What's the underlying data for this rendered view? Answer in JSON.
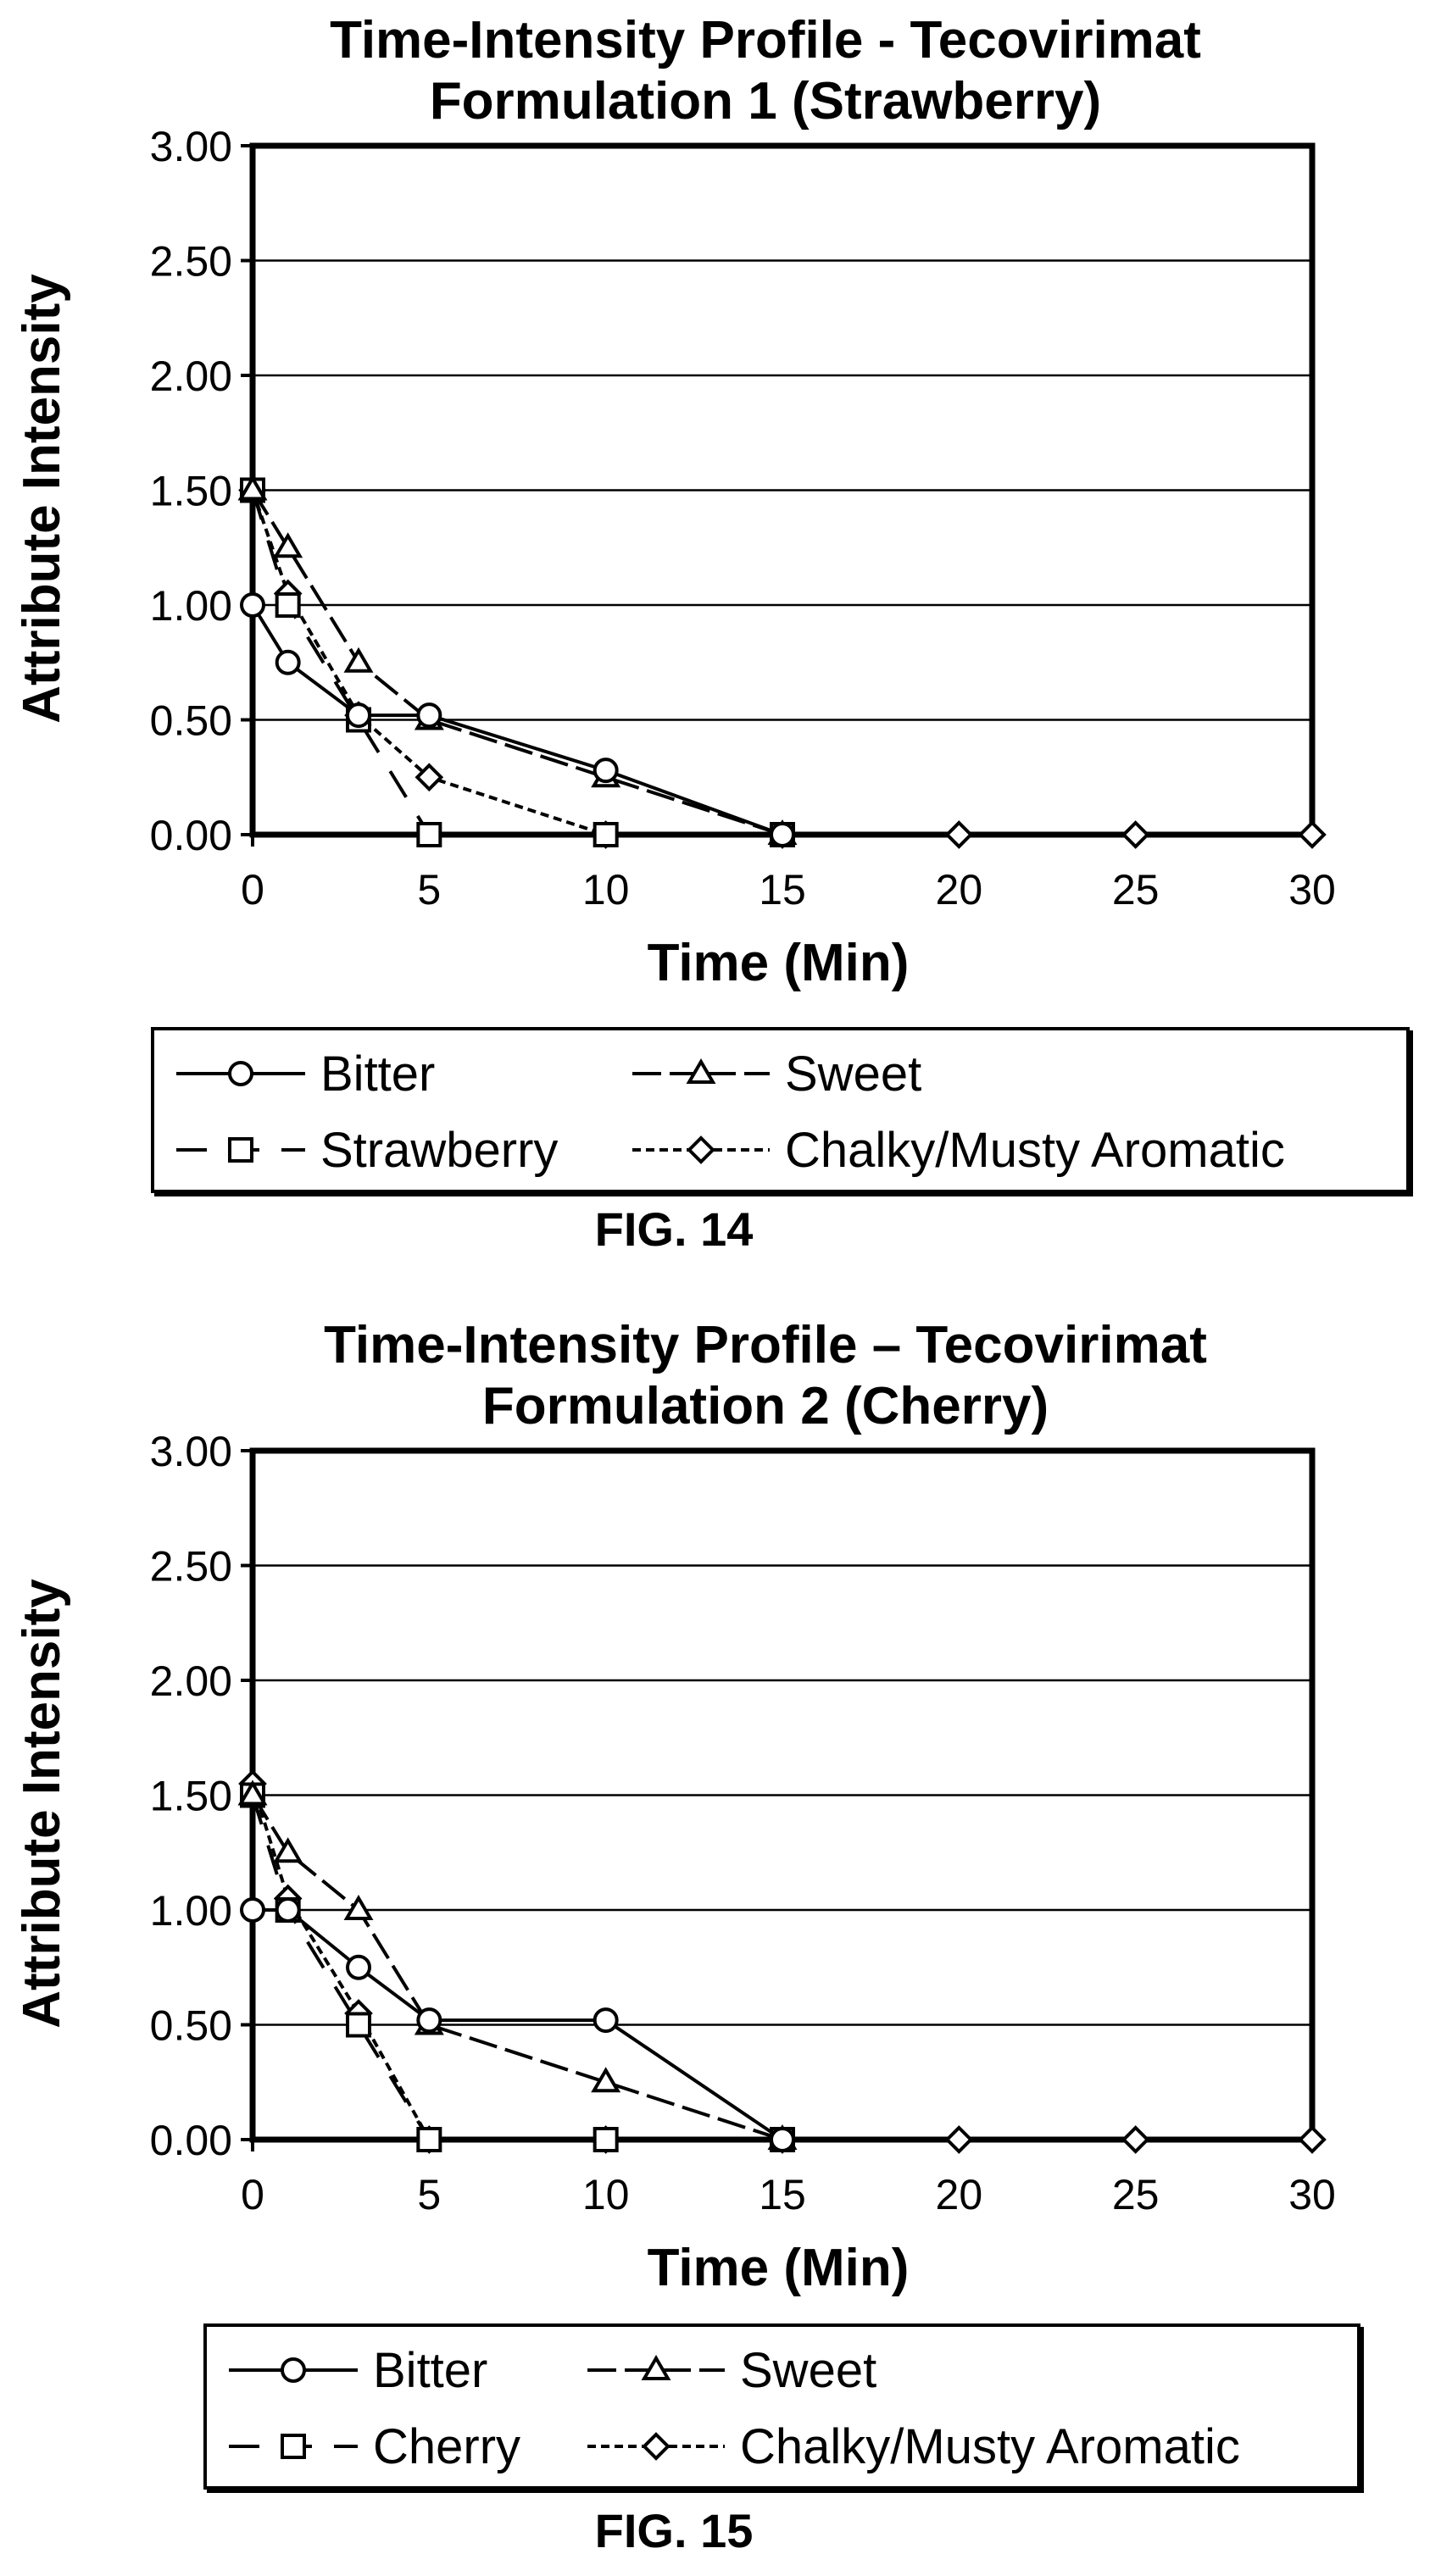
{
  "chart_data": [
    {
      "type": "line",
      "title": "Time-Intensity Profile - Tecovirimat Formulation 1 (Strawberry)",
      "title_lines": [
        "Time-Intensity Profile - Tecovirimat",
        "Formulation 1 (Strawberry)"
      ],
      "xlabel": "Time (Min)",
      "ylabel": "Attribute Intensity",
      "xlim": [
        0,
        30
      ],
      "ylim": [
        0,
        3
      ],
      "xticks": [
        "0",
        "5",
        "10",
        "15",
        "20",
        "25",
        "30"
      ],
      "xtick_values": [
        0,
        5,
        10,
        15,
        20,
        25,
        30
      ],
      "yticks": [
        "0.00",
        "0.50",
        "1.00",
        "1.50",
        "2.00",
        "2.50",
        "3.00"
      ],
      "ytick_values": [
        0,
        0.5,
        1,
        1.5,
        2,
        2.5,
        3
      ],
      "grid": "horizontal",
      "legend_position": "bottom",
      "series": [
        {
          "name": "Bitter",
          "marker": "circle",
          "line": "solid",
          "x": [
            0,
            1,
            3,
            5,
            10,
            15
          ],
          "y": [
            1.0,
            0.75,
            0.52,
            0.52,
            0.28,
            0.0
          ]
        },
        {
          "name": "Sweet",
          "marker": "triangle",
          "line": "long-dash",
          "x": [
            0,
            1,
            3,
            5,
            10,
            15
          ],
          "y": [
            1.5,
            1.25,
            0.75,
            0.5,
            0.25,
            0.0
          ]
        },
        {
          "name": "Strawberry",
          "marker": "square",
          "line": "dash",
          "x": [
            0,
            1,
            3,
            5,
            10,
            15
          ],
          "y": [
            1.5,
            1.0,
            0.5,
            0.0,
            0.0,
            0.0
          ]
        },
        {
          "name": "Chalky/Musty Aromatic",
          "marker": "diamond",
          "line": "short-dash",
          "x": [
            0,
            1,
            3,
            5,
            10,
            15,
            20,
            25,
            30
          ],
          "y": [
            1.5,
            1.05,
            0.52,
            0.25,
            0.0,
            0.0,
            0.0,
            0.0,
            0.0
          ]
        }
      ]
    },
    {
      "type": "line",
      "title": "Time-Intensity Profile – Tecovirimat Formulation 2 (Cherry)",
      "title_lines": [
        "Time-Intensity Profile – Tecovirimat",
        "Formulation 2 (Cherry)"
      ],
      "xlabel": "Time (Min)",
      "ylabel": "Attribute Intensity",
      "xlim": [
        0,
        30
      ],
      "ylim": [
        0,
        3
      ],
      "xticks": [
        "0",
        "5",
        "10",
        "15",
        "20",
        "25",
        "30"
      ],
      "xtick_values": [
        0,
        5,
        10,
        15,
        20,
        25,
        30
      ],
      "yticks": [
        "0.00",
        "0.50",
        "1.00",
        "1.50",
        "2.00",
        "2.50",
        "3.00"
      ],
      "ytick_values": [
        0,
        0.5,
        1,
        1.5,
        2,
        2.5,
        3
      ],
      "grid": "horizontal",
      "legend_position": "bottom",
      "series": [
        {
          "name": "Bitter",
          "marker": "circle",
          "line": "solid",
          "x": [
            0,
            1,
            3,
            5,
            10,
            15
          ],
          "y": [
            1.0,
            1.0,
            0.75,
            0.52,
            0.52,
            0.0
          ]
        },
        {
          "name": "Sweet",
          "marker": "triangle",
          "line": "long-dash",
          "x": [
            0,
            1,
            3,
            5,
            10,
            15
          ],
          "y": [
            1.5,
            1.25,
            1.0,
            0.5,
            0.25,
            0.0
          ]
        },
        {
          "name": "Cherry",
          "marker": "square",
          "line": "dash",
          "x": [
            0,
            1,
            3,
            5,
            10,
            15
          ],
          "y": [
            1.5,
            1.0,
            0.5,
            0.0,
            0.0,
            0.0
          ]
        },
        {
          "name": "Chalky/Musty Aromatic",
          "marker": "diamond",
          "line": "short-dash",
          "x": [
            0,
            1,
            3,
            5,
            10,
            15,
            20,
            25,
            30
          ],
          "y": [
            1.55,
            1.05,
            0.55,
            0.0,
            0.0,
            0.0,
            0.0,
            0.0,
            0.0
          ]
        }
      ]
    }
  ],
  "figures": [
    {
      "label": "FIG. 14"
    },
    {
      "label": "FIG. 15"
    }
  ]
}
